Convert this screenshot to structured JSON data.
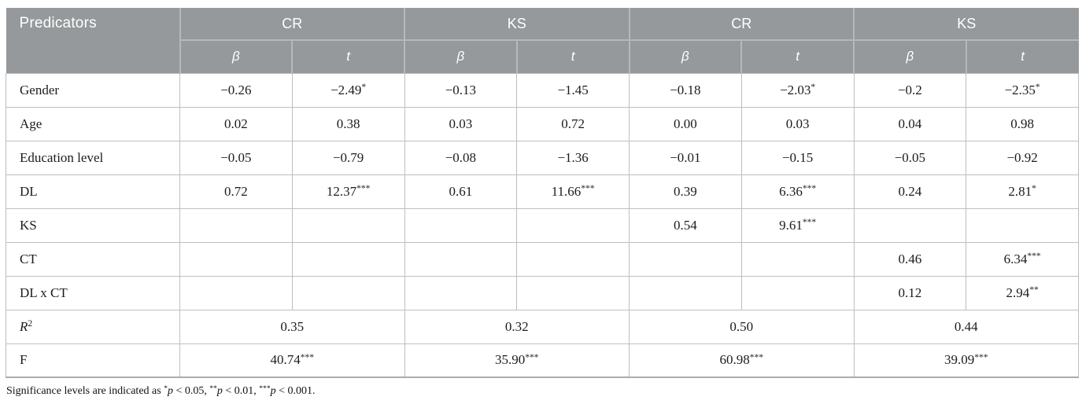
{
  "table": {
    "corner_label": "Predicators",
    "groups": [
      {
        "label": "CR"
      },
      {
        "label": "KS"
      },
      {
        "label": "CR"
      },
      {
        "label": "KS"
      }
    ],
    "subheaders": [
      "β",
      "t",
      "β",
      "t",
      "β",
      "t",
      "β",
      "t"
    ],
    "rows": [
      {
        "label": "Gender",
        "cells": [
          "−0.26",
          "−2.49*",
          "−0.13",
          "−1.45",
          "−0.18",
          "−2.03*",
          "−0.2",
          "−2.35*"
        ]
      },
      {
        "label": "Age",
        "cells": [
          "0.02",
          "0.38",
          "0.03",
          "0.72",
          "0.00",
          "0.03",
          "0.04",
          "0.98"
        ]
      },
      {
        "label": "Education level",
        "cells": [
          "−0.05",
          "−0.79",
          "−0.08",
          "−1.36",
          "−0.01",
          "−0.15",
          "−0.05",
          "−0.92"
        ]
      },
      {
        "label": "DL",
        "cells": [
          "0.72",
          "12.37***",
          "0.61",
          "11.66***",
          "0.39",
          "6.36***",
          "0.24",
          "2.81*"
        ]
      },
      {
        "label": "KS",
        "cells": [
          "",
          "",
          "",
          "",
          "0.54",
          "9.61***",
          "",
          ""
        ]
      },
      {
        "label": "CT",
        "cells": [
          "",
          "",
          "",
          "",
          "",
          "",
          "0.46",
          "6.34***"
        ]
      },
      {
        "label": "DL x CT",
        "cells": [
          "",
          "",
          "",
          "",
          "",
          "",
          "0.12",
          "2.94**"
        ]
      }
    ],
    "merged_rows": [
      {
        "label_base": "R",
        "label_sup": "2",
        "label_italic": true,
        "cells": [
          "0.35",
          "0.32",
          "0.50",
          "0.44"
        ]
      },
      {
        "label_base": "F",
        "cells": [
          "40.74***",
          "35.90***",
          "60.98***",
          "39.09***"
        ]
      }
    ]
  },
  "footnote": "Significance levels are indicated as *p < 0.05, **p < 0.01, ***p < 0.001.",
  "colors": {
    "header_bg": "#95999b",
    "header_text": "#ffffff",
    "header_divider": "#b6b9bb",
    "body_border": "#bcbfc1",
    "body_border_strong": "#a9acae",
    "text": "#1c1c1c",
    "background": "#ffffff"
  }
}
